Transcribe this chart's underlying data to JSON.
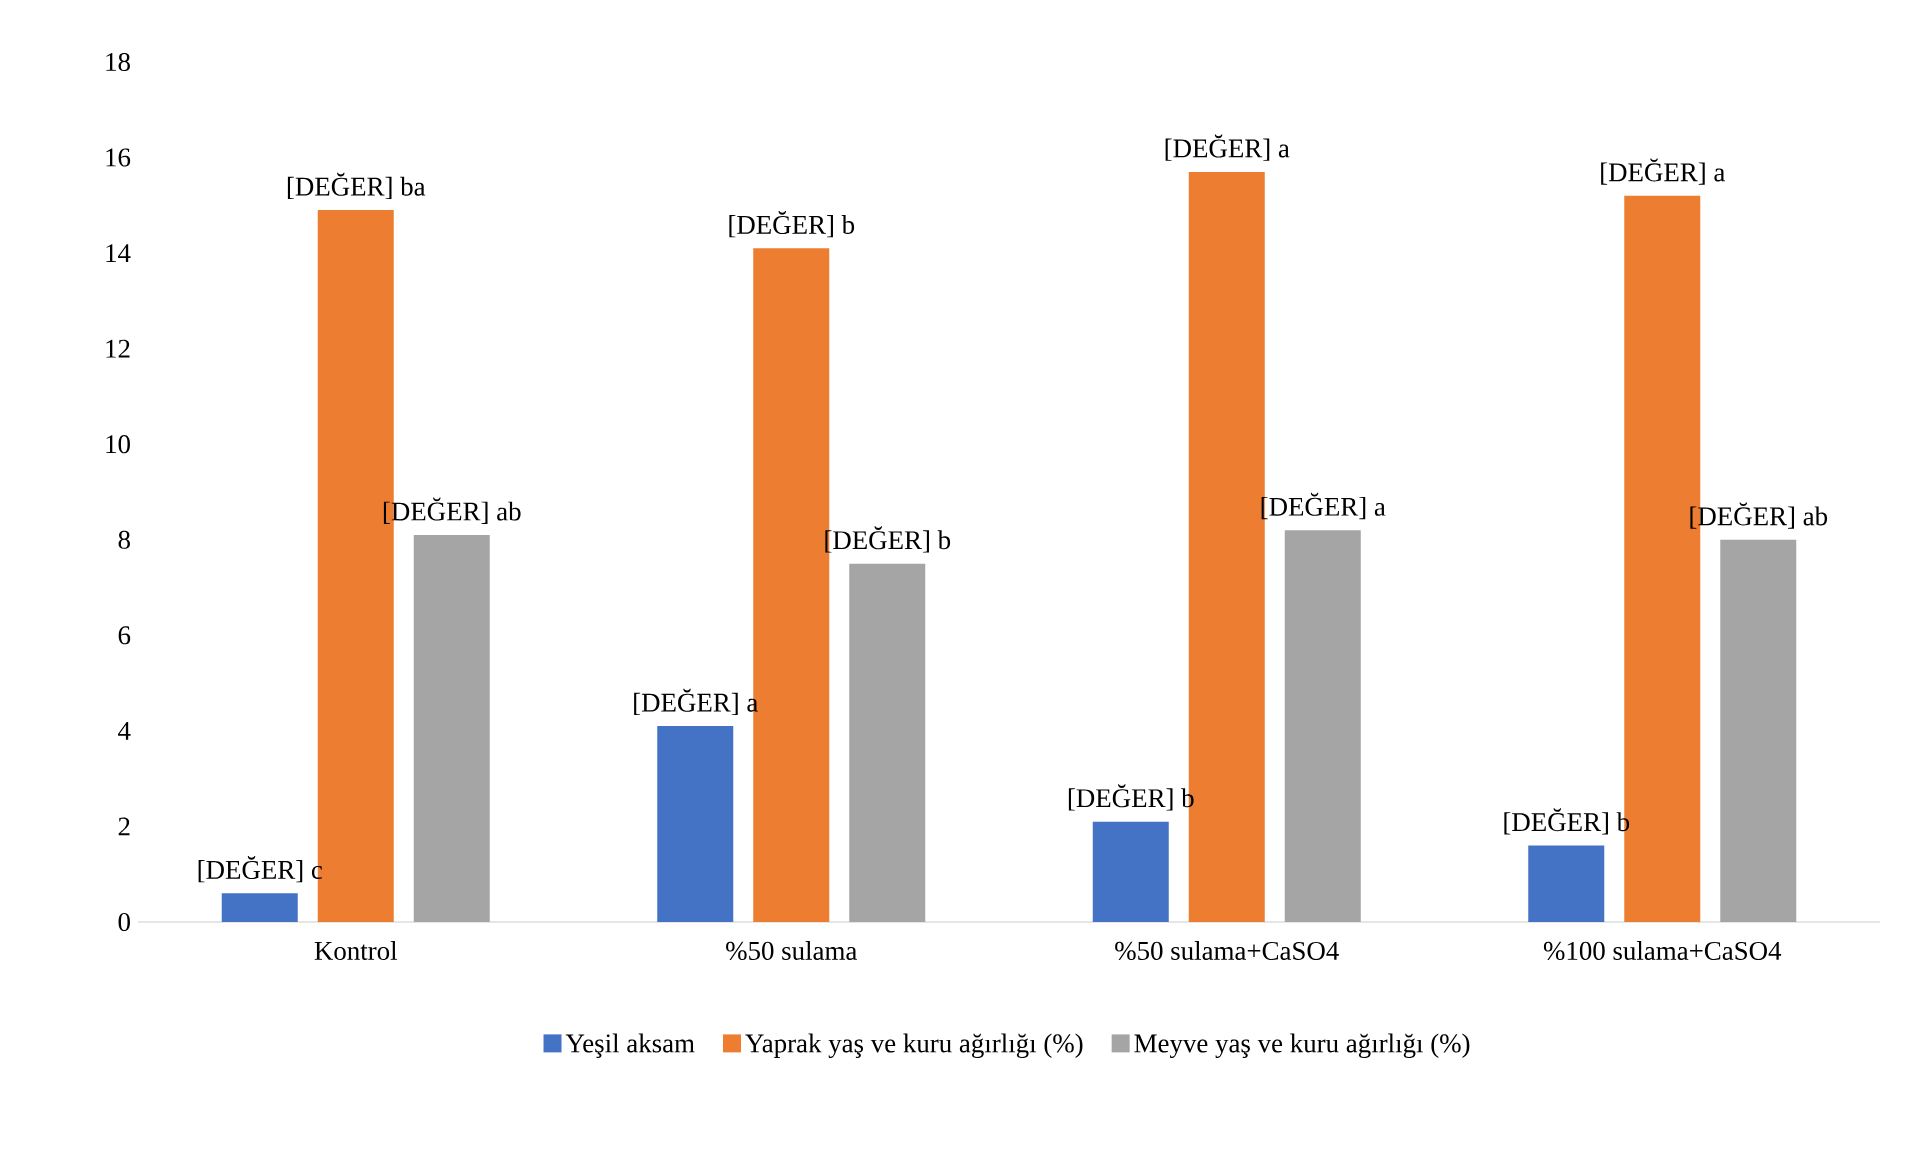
{
  "chart_data": {
    "type": "bar",
    "categories": [
      "Kontrol",
      "%50 sulama",
      "%50 sulama+CaSO4",
      "%100 sulama+CaSO4"
    ],
    "series": [
      {
        "name": "Yeşil aksam",
        "color": "#4472c4",
        "values": [
          0.6,
          4.1,
          2.1,
          1.6
        ],
        "value_labels": [
          "[DEĞER] c",
          "[DEĞER] a",
          "[DEĞER] b",
          "[DEĞER] b"
        ]
      },
      {
        "name": "Yaprak yaş ve kuru ağırlığı (%)",
        "color": "#ed7d31",
        "values": [
          14.9,
          14.1,
          15.7,
          15.2
        ],
        "value_labels": [
          "[DEĞER] ba",
          "[DEĞER] b",
          "[DEĞER] a",
          "[DEĞER] a"
        ]
      },
      {
        "name": "Meyve yaş ve kuru ağırlığı (%)",
        "color": "#a5a5a5",
        "values": [
          8.1,
          7.5,
          8.2,
          8.0
        ],
        "value_labels": [
          "[DEĞER] ab",
          "[DEĞER] b",
          "[DEĞER] a",
          "[DEĞER] ab"
        ]
      }
    ],
    "ylim": [
      0,
      18
    ],
    "yticks": [
      0,
      2,
      4,
      6,
      8,
      10,
      12,
      14,
      16,
      18
    ],
    "grid": false,
    "legend": "bottom"
  }
}
